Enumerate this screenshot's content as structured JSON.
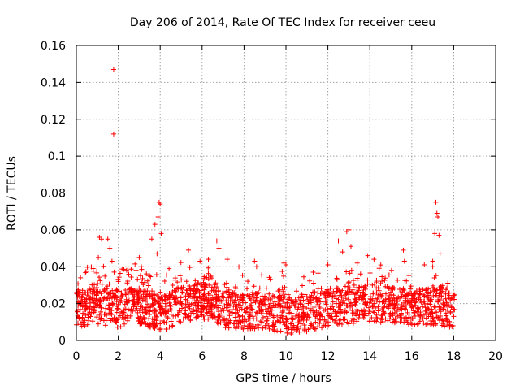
{
  "chart_data": {
    "type": "scatter",
    "title": "Day 206 of 2014, Rate Of TEC Index for receiver ceeu",
    "xlabel": "GPS time / hours",
    "ylabel": "ROTI / TECUs",
    "xlim": [
      0,
      20
    ],
    "ylim": [
      0,
      0.16
    ],
    "xticks": [
      "0",
      "2",
      "4",
      "6",
      "8",
      "10",
      "12",
      "14",
      "16",
      "18",
      "20"
    ],
    "yticks": [
      "0",
      "0.02",
      "0.04",
      "0.06",
      "0.08",
      "0.1",
      "0.12",
      "0.14",
      "0.16"
    ],
    "grid": true,
    "marker": "+",
    "color": "#ff0000",
    "time_range": [
      0,
      18.05
    ],
    "baseline_profile": [
      [
        0.0,
        0.017
      ],
      [
        1.0,
        0.019
      ],
      [
        2.0,
        0.017
      ],
      [
        3.0,
        0.019
      ],
      [
        4.0,
        0.015
      ],
      [
        5.0,
        0.019
      ],
      [
        6.0,
        0.022
      ],
      [
        7.0,
        0.017
      ],
      [
        8.0,
        0.016
      ],
      [
        9.0,
        0.016
      ],
      [
        10.0,
        0.013
      ],
      [
        11.0,
        0.014
      ],
      [
        12.0,
        0.018
      ],
      [
        13.0,
        0.019
      ],
      [
        14.0,
        0.02
      ],
      [
        15.0,
        0.019
      ],
      [
        16.0,
        0.018
      ],
      [
        17.0,
        0.018
      ],
      [
        18.0,
        0.017
      ]
    ],
    "notable_points": [
      {
        "x": 1.78,
        "y": 0.147
      },
      {
        "x": 1.78,
        "y": 0.112
      },
      {
        "x": 1.1,
        "y": 0.056
      },
      {
        "x": 1.2,
        "y": 0.055
      },
      {
        "x": 1.5,
        "y": 0.055
      },
      {
        "x": 1.6,
        "y": 0.05
      },
      {
        "x": 1.7,
        "y": 0.043
      },
      {
        "x": 1.05,
        "y": 0.045
      },
      {
        "x": 3.0,
        "y": 0.045
      },
      {
        "x": 3.1,
        "y": 0.04
      },
      {
        "x": 2.85,
        "y": 0.038
      },
      {
        "x": 3.6,
        "y": 0.055
      },
      {
        "x": 3.75,
        "y": 0.063
      },
      {
        "x": 3.95,
        "y": 0.075
      },
      {
        "x": 4.0,
        "y": 0.074
      },
      {
        "x": 3.9,
        "y": 0.067
      },
      {
        "x": 4.05,
        "y": 0.058
      },
      {
        "x": 3.85,
        "y": 0.047
      },
      {
        "x": 5.35,
        "y": 0.049
      },
      {
        "x": 5.9,
        "y": 0.043
      },
      {
        "x": 6.7,
        "y": 0.054
      },
      {
        "x": 6.8,
        "y": 0.05
      },
      {
        "x": 6.3,
        "y": 0.044
      },
      {
        "x": 7.2,
        "y": 0.044
      },
      {
        "x": 8.5,
        "y": 0.043
      },
      {
        "x": 8.6,
        "y": 0.04
      },
      {
        "x": 9.9,
        "y": 0.042
      },
      {
        "x": 10.0,
        "y": 0.041
      },
      {
        "x": 11.3,
        "y": 0.037
      },
      {
        "x": 12.0,
        "y": 0.041
      },
      {
        "x": 12.5,
        "y": 0.054
      },
      {
        "x": 12.9,
        "y": 0.059
      },
      {
        "x": 13.0,
        "y": 0.06
      },
      {
        "x": 13.1,
        "y": 0.051
      },
      {
        "x": 12.7,
        "y": 0.048
      },
      {
        "x": 13.4,
        "y": 0.042
      },
      {
        "x": 13.9,
        "y": 0.046
      },
      {
        "x": 14.2,
        "y": 0.044
      },
      {
        "x": 15.6,
        "y": 0.049
      },
      {
        "x": 15.65,
        "y": 0.043
      },
      {
        "x": 16.6,
        "y": 0.041
      },
      {
        "x": 17.0,
        "y": 0.04
      },
      {
        "x": 17.1,
        "y": 0.058
      },
      {
        "x": 17.15,
        "y": 0.075
      },
      {
        "x": 17.2,
        "y": 0.069
      },
      {
        "x": 17.25,
        "y": 0.067
      },
      {
        "x": 17.3,
        "y": 0.057
      },
      {
        "x": 17.35,
        "y": 0.047
      },
      {
        "x": 17.0,
        "y": 0.043
      },
      {
        "x": 0.2,
        "y": 0.034
      },
      {
        "x": 0.8,
        "y": 0.039
      },
      {
        "x": 2.4,
        "y": 0.038
      },
      {
        "x": 4.6,
        "y": 0.03
      }
    ]
  }
}
